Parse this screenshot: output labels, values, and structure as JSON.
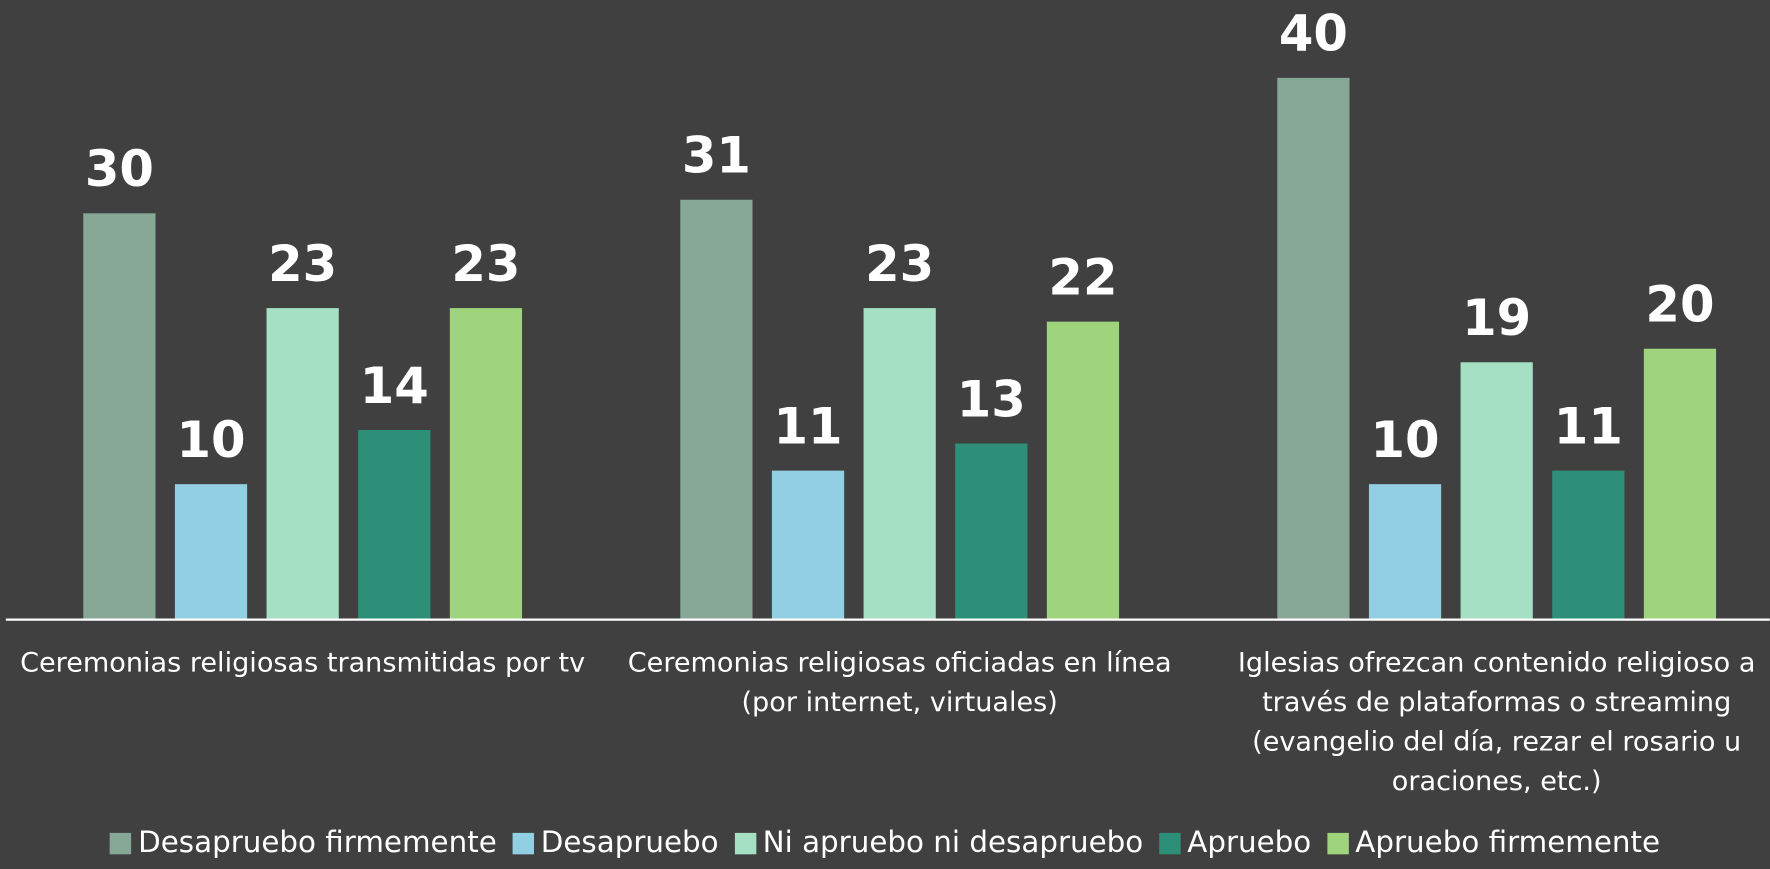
{
  "chart_data": {
    "type": "bar",
    "categories": [
      "Ceremonias religiosas transmitidas por tv",
      "Ceremonias religiosas oficiadas en línea (por internet, virtuales)",
      "Iglesias ofrezcan contenido religioso a través de plataformas o streaming (evangelio del día, rezar el rosario u oraciones, etc.)"
    ],
    "series": [
      {
        "name": "Desapruebo firmemente",
        "color": "#87a896",
        "values": [
          30,
          31,
          40
        ]
      },
      {
        "name": "Desapruebo",
        "color": "#93cfe2",
        "values": [
          10,
          11,
          10
        ]
      },
      {
        "name": "Ni apruebo ni desapruebo",
        "color": "#a5e0c4",
        "values": [
          23,
          23,
          19
        ]
      },
      {
        "name": "Apruebo",
        "color": "#2e8f78",
        "values": [
          14,
          13,
          11
        ]
      },
      {
        "name": "Apruebo firmemente",
        "color": "#9fd47c",
        "values": [
          23,
          22,
          20
        ]
      }
    ],
    "ylim": [
      0,
      45
    ],
    "grid": false,
    "legend": "bottom"
  }
}
